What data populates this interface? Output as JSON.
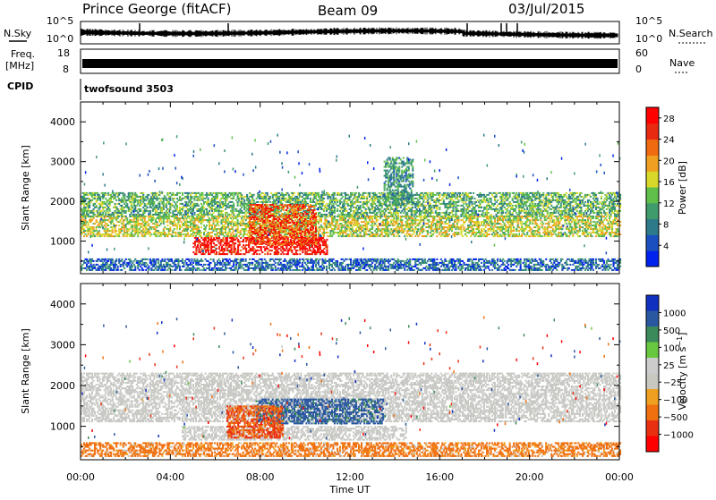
{
  "header": {
    "station": "Prince George (fitACF)",
    "beam": "Beam 09",
    "date": "03/Jul/2015"
  },
  "noise_panel": {
    "left_label": "N.Sky",
    "right_label": "N.Search",
    "top_tick": "10^5",
    "bottom_tick": "10^0",
    "right_top_tick": "10^5",
    "right_bottom_tick": "10^0"
  },
  "freq_panel": {
    "left_label_line1": "Freq.",
    "left_label_line2": "[MHz]",
    "left_top_tick": "18",
    "left_bottom_tick": "8",
    "right_label": "Nave",
    "right_top_tick": "60",
    "right_bottom_tick": "0"
  },
  "cpid_panel": {
    "label": "CPID",
    "program": "twofsound 3503"
  },
  "colors": {
    "power_scale": [
      "#0022ee",
      "#1a4fbf",
      "#2c7a8a",
      "#3f9a6c",
      "#5fbf4a",
      "#d8d82a",
      "#f0a020",
      "#f06a10",
      "#e82a10",
      "#ff0000"
    ],
    "velocity_scale": [
      "#1030c0",
      "#2a58a0",
      "#3a8a5a",
      "#68c840",
      "#cccccc",
      "#c8c8c0",
      "#f0a020",
      "#f07010",
      "#e83010",
      "#ff0000"
    ],
    "ground_scatter": "#c8c8c4"
  },
  "chart_data": [
    {
      "type": "heatmap",
      "title": "",
      "xlabel": "Time UT",
      "ylabel": "Slant Range [km]",
      "xlim": [
        "00:00",
        "24:00"
      ],
      "ylim": [
        180,
        4500
      ],
      "x_ticks": [
        "00:00",
        "04:00",
        "08:00",
        "12:00",
        "16:00",
        "20:00",
        "00:00"
      ],
      "y_ticks": [
        1000,
        2000,
        3000,
        4000
      ],
      "colorbar": {
        "label": "Power [dB]",
        "ticks": [
          4,
          8,
          12,
          16,
          20,
          24,
          28
        ],
        "range": [
          0,
          30
        ]
      },
      "regions": [
        {
          "name": "upper band",
          "t_start": 0,
          "t_end": 24,
          "range_start": 1600,
          "range_end": 2200,
          "value": 12
        },
        {
          "name": "mid band",
          "t_start": 0,
          "t_end": 24,
          "range_start": 1100,
          "range_end": 1600,
          "value": 16
        },
        {
          "name": "core echo",
          "t_start": 5.0,
          "t_end": 11.0,
          "range_start": 650,
          "range_end": 1100,
          "value": 28
        },
        {
          "name": "enhancement",
          "t_start": 7.5,
          "t_end": 10.5,
          "range_start": 900,
          "range_end": 1900,
          "value": 24
        },
        {
          "name": "plume",
          "t_start": 13.5,
          "t_end": 14.8,
          "range_start": 1900,
          "range_end": 3100,
          "value": 10
        },
        {
          "name": "near range",
          "t_start": 0,
          "t_end": 24,
          "range_start": 250,
          "range_end": 550,
          "value": 6
        }
      ]
    },
    {
      "type": "heatmap",
      "title": "",
      "xlabel": "Time UT",
      "ylabel": "Slant Range [km]",
      "xlim": [
        "00:00",
        "24:00"
      ],
      "ylim": [
        180,
        4500
      ],
      "x_ticks": [
        "00:00",
        "04:00",
        "08:00",
        "12:00",
        "16:00",
        "20:00",
        "00:00"
      ],
      "y_ticks": [
        1000,
        2000,
        3000,
        4000
      ],
      "colorbar": {
        "label": "Velocity [m s^-1]",
        "ticks": [
          1000,
          500,
          100,
          25,
          -25,
          -100,
          -500,
          -1000
        ]
      },
      "regions": [
        {
          "name": "ground scatter",
          "t_start": 0,
          "t_end": 24,
          "range_start": 1100,
          "range_end": 2300,
          "value": 0
        },
        {
          "name": "ground scatter low",
          "t_start": 4.5,
          "t_end": 14.5,
          "range_start": 650,
          "range_end": 1000,
          "value": 0
        },
        {
          "name": "positive flow",
          "t_start": 7.8,
          "t_end": 13.5,
          "range_start": 1050,
          "range_end": 1650,
          "value": 400
        },
        {
          "name": "negative flow",
          "t_start": 6.5,
          "t_end": 9.0,
          "range_start": 700,
          "range_end": 1500,
          "value": -300
        },
        {
          "name": "near range mixed",
          "t_start": 0,
          "t_end": 24,
          "range_start": 250,
          "range_end": 600,
          "value": -150
        }
      ]
    }
  ]
}
